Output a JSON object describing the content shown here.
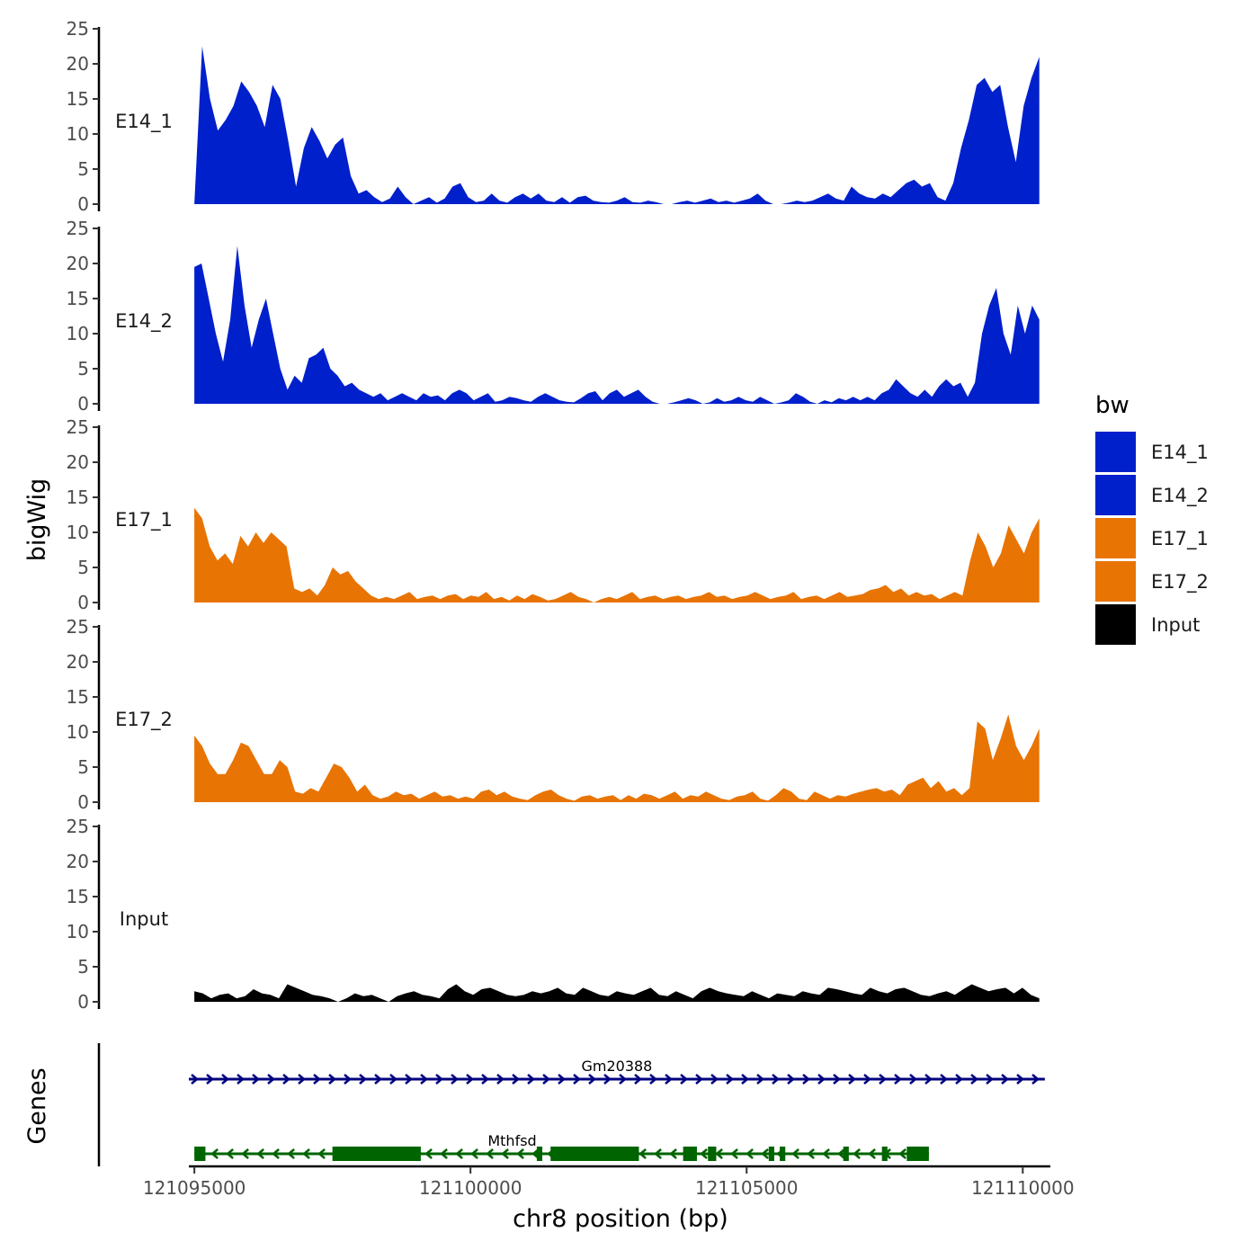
{
  "chart_data": {
    "type": "area",
    "ylabel": "bigWig",
    "genes_label": "Genes",
    "xlabel": "chr8 position (bp)",
    "xlim": [
      121094900,
      121110500
    ],
    "x_ticks": [
      121095000,
      121100000,
      121105000,
      121110000
    ],
    "x_tick_labels": [
      "121095000",
      "121100000",
      "121105000",
      "121110000"
    ],
    "ylim": [
      0,
      25
    ],
    "y_ticks": [
      0,
      5,
      10,
      15,
      20,
      25
    ],
    "y_tick_labels": [
      "0",
      "5",
      "10",
      "15",
      "20",
      "25"
    ],
    "x_start": 121095000,
    "x_end": 121110300,
    "legend": {
      "title": "bw",
      "position": "right",
      "entries": [
        {
          "label": "E14_1",
          "color": "#0020CC"
        },
        {
          "label": "E14_2",
          "color": "#0020CC"
        },
        {
          "label": "E17_1",
          "color": "#E87404"
        },
        {
          "label": "E17_2",
          "color": "#E87404"
        },
        {
          "label": "Input",
          "color": "#000000"
        }
      ]
    },
    "series": [
      {
        "name": "E14_1",
        "color": "#0020CC",
        "values": [
          0,
          22.5,
          15,
          10.5,
          12,
          14,
          17.5,
          16,
          14,
          11,
          17,
          15,
          9,
          2.5,
          8,
          11,
          9,
          6.5,
          8.5,
          9.5,
          4,
          1.5,
          2,
          1,
          0.3,
          0.8,
          2.5,
          1,
          0,
          0.5,
          1,
          0.2,
          0.8,
          2.5,
          3,
          1,
          0.3,
          0.5,
          1.5,
          0.5,
          0.2,
          1,
          1.5,
          0.8,
          1.5,
          0.5,
          0.3,
          1,
          0.2,
          1,
          1.2,
          0.5,
          0.3,
          0.2,
          0.5,
          1,
          0.3,
          0.2,
          0.5,
          0.3,
          0,
          0,
          0.3,
          0.5,
          0.2,
          0.5,
          0.8,
          0.3,
          0.5,
          0.2,
          0.5,
          0.8,
          1.5,
          0.5,
          0,
          0,
          0.2,
          0.5,
          0.3,
          0.5,
          1,
          1.5,
          0.8,
          0.5,
          2.5,
          1.5,
          1,
          0.8,
          1.5,
          1,
          2,
          3,
          3.5,
          2.5,
          3,
          1,
          0.5,
          3,
          8,
          12,
          17,
          18,
          16,
          17,
          11,
          6,
          14,
          18,
          21
        ]
      },
      {
        "name": "E14_2",
        "color": "#0020CC",
        "values": [
          19.5,
          20,
          15,
          10,
          6,
          12,
          22.5,
          14,
          8,
          12,
          15,
          10,
          5,
          2,
          4,
          3,
          6.5,
          7,
          8,
          5,
          4,
          2.5,
          3,
          2,
          1.5,
          1,
          1.5,
          0.5,
          1,
          1.5,
          1,
          0.5,
          1.5,
          1,
          1.2,
          0.5,
          1.5,
          2,
          1.5,
          0.5,
          1,
          1.5,
          0.3,
          0.5,
          1,
          0.8,
          0.5,
          0.3,
          1,
          1.5,
          1,
          0.5,
          0.3,
          0.2,
          0.8,
          1.5,
          1.8,
          0.5,
          1.5,
          2,
          1,
          1.5,
          2,
          1,
          0.3,
          0,
          0,
          0.2,
          0.5,
          0.8,
          0.5,
          0,
          0.2,
          0.8,
          0.3,
          0.5,
          1,
          0.5,
          0.3,
          1,
          0.5,
          0,
          0.2,
          0.5,
          1.5,
          1,
          0.3,
          0,
          0.5,
          0.2,
          0.8,
          0.5,
          1,
          0.5,
          1,
          0.5,
          1.5,
          2,
          3.5,
          2.5,
          1.5,
          1,
          2,
          1,
          2.5,
          3.5,
          2.5,
          3,
          1,
          3,
          10,
          14,
          16.5,
          10,
          7,
          14,
          10,
          14,
          12
        ]
      },
      {
        "name": "E17_1",
        "color": "#E87404",
        "values": [
          13.5,
          12,
          8,
          6,
          7,
          5.5,
          9.5,
          8,
          10,
          8.5,
          10,
          9,
          8,
          2,
          1.5,
          2,
          1,
          2.5,
          5,
          4,
          4.5,
          3,
          2,
          1,
          0.5,
          0.8,
          0.5,
          1,
          1.5,
          0.5,
          0.8,
          1,
          0.5,
          1,
          1.2,
          0.5,
          1,
          0.8,
          1.5,
          0.5,
          0.8,
          0.3,
          1,
          0.5,
          1.2,
          0.8,
          0.3,
          0.5,
          1,
          1.5,
          0.8,
          0.5,
          0,
          0.5,
          0.8,
          0.5,
          1,
          1.5,
          0.5,
          0.8,
          1,
          0.5,
          0.8,
          1,
          0.5,
          0.8,
          1,
          1.5,
          0.8,
          1,
          0.5,
          0.8,
          1,
          1.5,
          1,
          0.5,
          0.8,
          1,
          1.5,
          0.5,
          0.8,
          1,
          0.5,
          1,
          1.5,
          0.8,
          1,
          1.2,
          1.8,
          2,
          2.5,
          1.5,
          2,
          1,
          1.5,
          1,
          1.2,
          0.5,
          1,
          1.5,
          1,
          6,
          10,
          8,
          5,
          7,
          11,
          9,
          7,
          10,
          12
        ]
      },
      {
        "name": "E17_2",
        "color": "#E87404",
        "values": [
          9.5,
          8,
          5.5,
          4,
          4,
          6,
          8.5,
          8,
          6,
          4,
          4,
          6,
          5,
          1.5,
          1.2,
          2,
          1.5,
          3.5,
          5.5,
          5,
          3.5,
          1.5,
          2.5,
          1,
          0.5,
          0.8,
          1.5,
          1,
          1.2,
          0.5,
          1,
          1.5,
          0.8,
          1,
          0.5,
          0.8,
          0.5,
          1.5,
          1.8,
          1,
          1.5,
          0.8,
          0.5,
          0.3,
          1,
          1.5,
          1.8,
          1,
          0.5,
          0.2,
          0.8,
          1,
          0.5,
          0.8,
          1,
          0.3,
          1,
          0.5,
          1.2,
          1,
          0.5,
          1,
          1.5,
          0.5,
          1,
          0.8,
          1.5,
          1,
          0.5,
          0.3,
          0.8,
          1,
          1.5,
          0.5,
          0.2,
          1,
          2,
          1.5,
          0.5,
          0.3,
          1.5,
          1,
          0.5,
          1,
          0.8,
          1.2,
          1.5,
          1.8,
          2,
          1.5,
          1.8,
          1,
          2.5,
          3,
          3.5,
          2,
          3,
          1.5,
          2,
          1,
          2,
          11.5,
          10.5,
          6,
          9,
          12.5,
          8,
          6,
          8,
          10.5
        ]
      },
      {
        "name": "Input",
        "color": "#000000",
        "values": [
          1.5,
          1.2,
          0.5,
          1,
          1.2,
          0.5,
          0.8,
          1.8,
          1.2,
          1,
          0.5,
          2.5,
          2,
          1.5,
          1,
          0.8,
          0.5,
          0,
          0.5,
          1.2,
          0.8,
          1,
          0.5,
          0,
          0.8,
          1.2,
          1.5,
          1,
          0.8,
          0.5,
          1.8,
          2.5,
          1.5,
          1,
          1.8,
          2,
          1.5,
          1,
          0.8,
          1,
          1.5,
          1.2,
          1.5,
          2,
          1.2,
          1,
          2,
          1.5,
          1,
          0.8,
          1.5,
          1.2,
          1,
          1.5,
          2,
          1,
          0.8,
          1.5,
          1,
          0.5,
          1.5,
          2,
          1.5,
          1.2,
          1,
          0.8,
          1.5,
          1,
          0.5,
          1.2,
          1,
          0.8,
          1.5,
          1.2,
          1,
          2,
          1.8,
          1.5,
          1.2,
          1,
          2,
          1.5,
          1.2,
          1.8,
          2,
          1.5,
          1,
          0.8,
          1.2,
          1.5,
          1,
          1.8,
          2.5,
          2,
          1.5,
          1.8,
          2,
          1.2,
          2,
          1,
          0.5
        ]
      }
    ],
    "genes": [
      {
        "name": "Gm20388",
        "color": "#000080",
        "strand": "+",
        "start": 121094900,
        "end": 121110400,
        "exons": []
      },
      {
        "name": "Mthfsd",
        "color": "#006400",
        "strand": "-",
        "start": 121095000,
        "end": 121108300,
        "exons": [
          [
            121095000,
            121095200
          ],
          [
            121097500,
            121099100
          ],
          [
            121101200,
            121101300
          ],
          [
            121101450,
            121103050
          ],
          [
            121103850,
            121104100
          ],
          [
            121104300,
            121104450
          ],
          [
            121105400,
            121105500
          ],
          [
            121105600,
            121105700
          ],
          [
            121106750,
            121106850
          ],
          [
            121107450,
            121107550
          ],
          [
            121107900,
            121108300
          ]
        ]
      }
    ]
  }
}
